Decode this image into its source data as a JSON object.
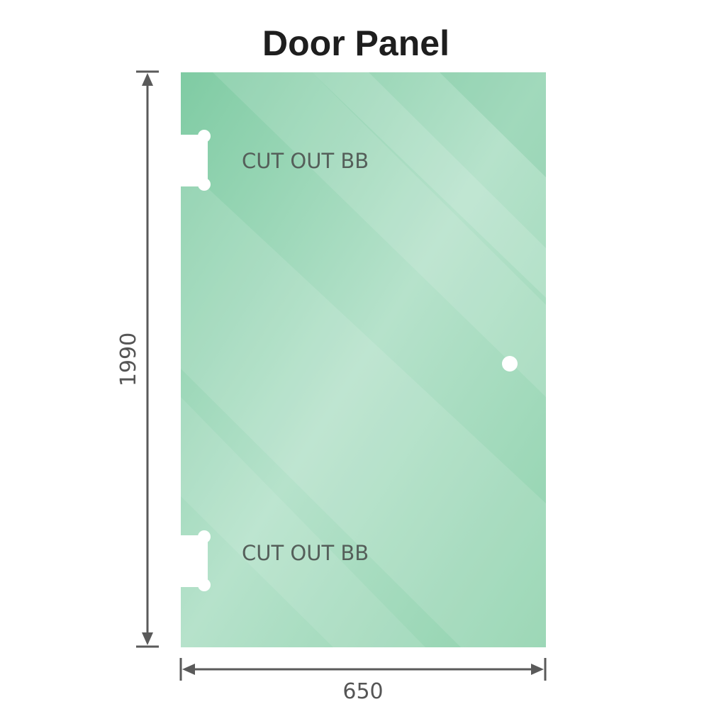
{
  "title": "Door Panel",
  "cutouts": [
    {
      "label": "CUT OUT BB"
    },
    {
      "label": "CUT OUT BB"
    }
  ],
  "dimensions": {
    "height": "1990",
    "width": "650"
  },
  "colors": {
    "glass": "#8fd1ae",
    "glass_light": "#b9e4cd",
    "dimension_line": "#5a5a5a",
    "title": "#1e1e1e"
  }
}
